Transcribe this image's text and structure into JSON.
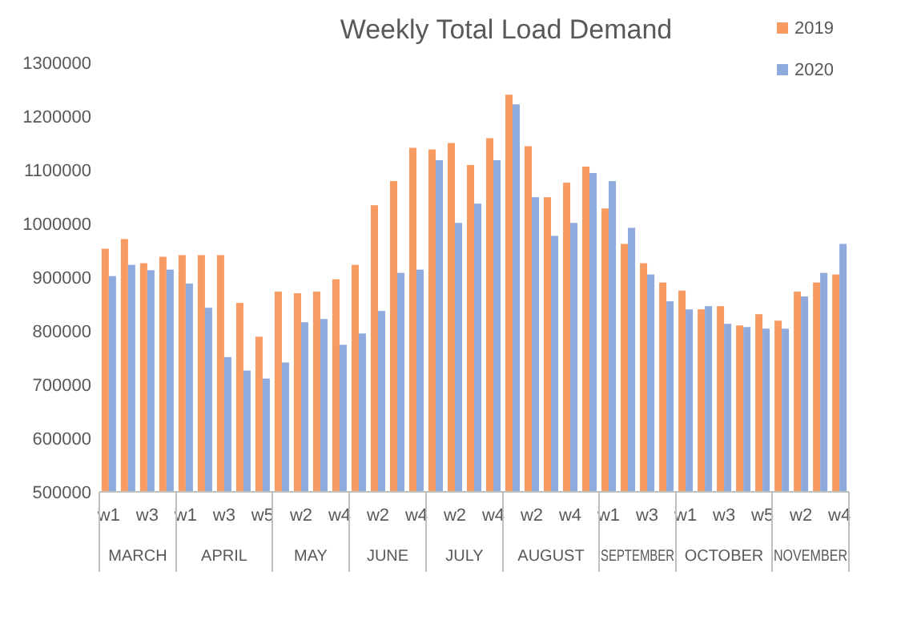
{
  "chart_data": {
    "type": "bar",
    "title": "Weekly Total Load Demand",
    "categories": [
      "w1",
      null,
      "w3",
      null,
      "w1",
      null,
      "w3",
      null,
      "w5",
      null,
      "w2",
      null,
      "w4",
      null,
      "w2",
      null,
      "w4",
      null,
      "w2",
      null,
      "w4",
      null,
      "w2",
      null,
      "w4",
      null,
      "w1",
      null,
      "w3",
      null,
      "w1",
      null,
      "w3",
      null,
      "w5",
      null,
      "w2",
      null,
      "w4"
    ],
    "series": [
      {
        "name": "2019",
        "color": "#f79b63",
        "values": [
          953000,
          971000,
          926000,
          938000,
          941000,
          941000,
          941000,
          852000,
          789000,
          873000,
          870000,
          873000,
          896000,
          923000,
          1034000,
          1079000,
          1141000,
          1138000,
          1150000,
          1109000,
          1159000,
          1240000,
          1144000,
          1049000,
          1076000,
          1106000,
          1028000,
          962000,
          926000,
          890000,
          875000,
          840000,
          846000,
          810000,
          831000,
          819000,
          873000,
          890000,
          905000
        ]
      },
      {
        "name": "2020",
        "color": "#8faadc",
        "values": [
          902000,
          923000,
          913000,
          914000,
          888000,
          843000,
          751000,
          726000,
          711000,
          741000,
          816000,
          822000,
          774000,
          795000,
          837000,
          908000,
          914000,
          1118000,
          1001000,
          1037000,
          1118000,
          1222000,
          1049000,
          977000,
          1001000,
          1094000,
          1079000,
          992000,
          905000,
          855000,
          840000,
          846000,
          813000,
          807000,
          804000,
          804000,
          864000,
          908000,
          962000
        ]
      }
    ],
    "annotations": [
      "MARCH",
      "APRIL",
      "MAY",
      "JUNE",
      "JULY",
      "AUGUST",
      "SEPTEMBER",
      "OCTOBER",
      "NOVEMBER"
    ],
    "ylim": [
      500000,
      1300000
    ],
    "yticks": [
      500000,
      600000,
      700000,
      800000,
      900000,
      1000000,
      1100000,
      1200000,
      1300000
    ],
    "grid": false,
    "legend": "top right"
  }
}
